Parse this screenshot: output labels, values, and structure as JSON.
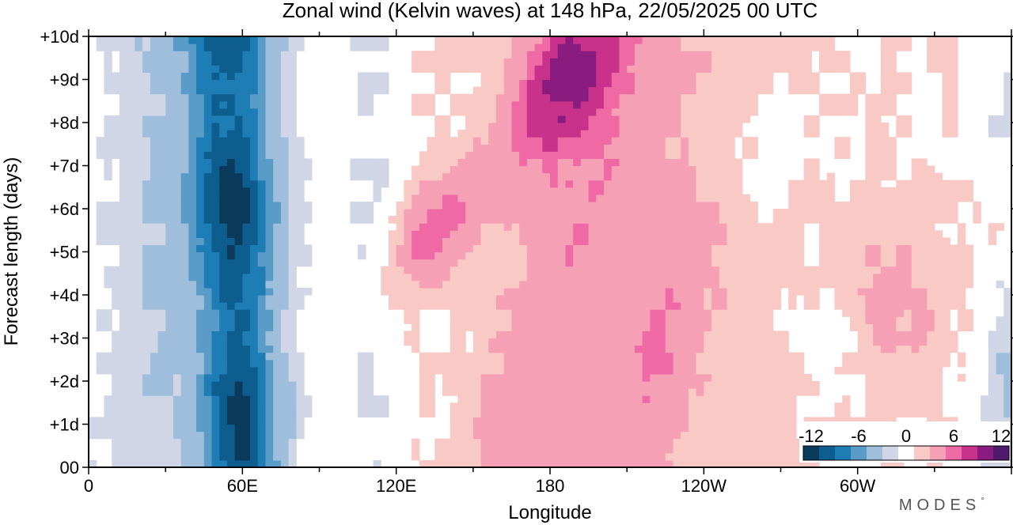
{
  "chart_data": {
    "type": "heatmap",
    "title": "Zonal wind (Kelvin waves) at 148 hPa,  22/05/2025  00 UTC",
    "xlabel": "Longitude",
    "ylabel": "Forecast length (days)",
    "x_ticks": [
      {
        "lon": 0,
        "label": "0"
      },
      {
        "lon": 60,
        "label": "60E"
      },
      {
        "lon": 120,
        "label": "120E"
      },
      {
        "lon": 180,
        "label": "180"
      },
      {
        "lon": 240,
        "label": "120W"
      },
      {
        "lon": 300,
        "label": "60W"
      }
    ],
    "x_range": [
      0,
      360
    ],
    "y_ticks": [
      {
        "day": 0,
        "label": "00"
      },
      {
        "day": 1,
        "label": "+1d"
      },
      {
        "day": 2,
        "label": "+2d"
      },
      {
        "day": 3,
        "label": "+3d"
      },
      {
        "day": 4,
        "label": "+4d"
      },
      {
        "day": 5,
        "label": "+5d"
      },
      {
        "day": 6,
        "label": "+6d"
      },
      {
        "day": 7,
        "label": "+7d"
      },
      {
        "day": 8,
        "label": "+8d"
      },
      {
        "day": 9,
        "label": "+9d"
      },
      {
        "day": 10,
        "label": "+10d"
      }
    ],
    "y_range": [
      0,
      10
    ],
    "value_levels": [
      -12,
      -10,
      -8,
      -6,
      -4,
      -2,
      0,
      2,
      4,
      6,
      8,
      10,
      12
    ],
    "legend_labels": [
      {
        "value": -12,
        "label": "-12"
      },
      {
        "value": -6,
        "label": "-6"
      },
      {
        "value": 0,
        "label": "0"
      },
      {
        "value": 6,
        "label": "6"
      },
      {
        "value": 12,
        "label": "12"
      }
    ],
    "legend_placement": "bottom-right",
    "colors": [
      "#0b3b5c",
      "#0d5e8e",
      "#1f7db6",
      "#5a9cc8",
      "#9fbedb",
      "#d1d6e6",
      "#ffffff",
      "#f9c9c6",
      "#f6a0b6",
      "#ef6aa4",
      "#c8328b",
      "#8a1c80",
      "#4f1a6b"
    ],
    "zero_band": [
      -1,
      1
    ],
    "features": {
      "negative_bands": [
        {
          "name": "main easterly band",
          "lon_at_day0": 60,
          "lon_at_day10": 55,
          "peak": -13
        },
        {
          "name": "eastern edge easterlies",
          "lon": 355,
          "days": [
            0,
            5
          ],
          "peak": -4
        },
        {
          "name": "eastern edge upper",
          "lon": 352,
          "days": [
            7,
            10
          ],
          "peak": -2
        }
      ],
      "positive_bands": [
        {
          "name": "eastward propagating maximum",
          "lon_start": 165,
          "lon_end": 195,
          "days": [
            6,
            10
          ],
          "peak": 8
        },
        {
          "name": "western flank maximum",
          "lon": 135,
          "days": [
            4.5,
            6.5
          ],
          "peak": 7
        },
        {
          "name": "dateline band",
          "lon": 185,
          "days": [
            0,
            10
          ],
          "peak": 4
        },
        {
          "name": "eastern Pacific band",
          "lon": 225,
          "days": [
            0,
            6
          ],
          "peak": 4
        },
        {
          "name": "Atlantic band",
          "lon": 315,
          "days": [
            2,
            6
          ],
          "peak": 3
        }
      ]
    }
  },
  "branding": {
    "logo_text": "MODES",
    "logo_mark": "°"
  }
}
